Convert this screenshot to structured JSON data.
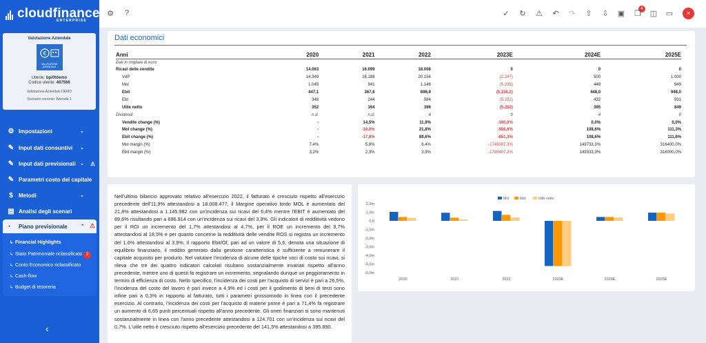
{
  "app": {
    "logo": "cloudfinance",
    "logo_sub": "ENTERPRISE"
  },
  "company": {
    "title": "Valutazione Aziendale",
    "logo_text": "VALUTAZIONE AZIENDALE",
    "user_label": "Utente:",
    "user": "bpi0tdemo",
    "code_label": "Codice utente:",
    "code": "487566",
    "project": "Valutazione Aziendale DEMO",
    "scenario": "Scenario corrente: Azienda 1"
  },
  "nav": {
    "impostazioni": "Impostazioni",
    "consuntivi": "Input dati consuntivi",
    "previsionali": "Input dati previsionali",
    "parametri": "Parametri costo del capitale",
    "metodi": "Metodi",
    "scenari": "Analisi degli scenari",
    "piano": "Piano previsionale",
    "sub": [
      "Financial Highlights",
      "Stato Patrimoniale riclassificato",
      "Conto Economico riclassificato",
      "Cash-flow",
      "Budget di tesoreria"
    ],
    "sub_badge": "2",
    "collapse": "‹"
  },
  "topbar": {
    "notifications": "4",
    "close": "×"
  },
  "icons": {
    "home": "gear-icon",
    "help": "question-icon",
    "check": "check-icon",
    "refresh": "refresh-icon",
    "alert": "alert-icon",
    "undo": "undo-icon",
    "redo": "redo-icon",
    "upload": "upload-icon",
    "download": "download-icon",
    "save": "save-icon",
    "copy": "copy-icon",
    "columns": "columns-icon",
    "panel": "panel-icon",
    "close": "close-icon"
  },
  "econ": {
    "title": "Dati economici",
    "header": [
      "Anni",
      "2020",
      "2021",
      "2022",
      "2023E",
      "2024E",
      "2025E"
    ],
    "rows": [
      {
        "cells": [
          "Dati in migliaia di euro",
          "",
          "",
          "",
          "",
          "",
          ""
        ],
        "style": "i",
        "neg": [
          false,
          false,
          false,
          false,
          false,
          false,
          false
        ]
      },
      {
        "cells": [
          "Ricavi delle vendite",
          "14.063",
          "16.099",
          "18.008",
          "0",
          "0",
          "0"
        ],
        "style": "b",
        "neg": [
          false,
          false,
          false,
          false,
          false,
          false,
          false
        ]
      },
      {
        "cells": [
          "VdP",
          "14.349",
          "16.188",
          "20.154",
          "(2.247)",
          "500",
          "1.000"
        ],
        "style": "in",
        "neg": [
          false,
          false,
          false,
          false,
          true,
          false,
          false
        ]
      },
      {
        "cells": [
          "Mol",
          "1.045",
          "941",
          "1.146",
          "(5.235)",
          "449",
          "949"
        ],
        "style": "in",
        "neg": [
          false,
          false,
          false,
          false,
          true,
          false,
          false
        ]
      },
      {
        "cells": [
          "Ebit",
          "447,1",
          "367,6",
          "696,9",
          "(5.236,2)",
          "448,0",
          "948,0"
        ],
        "style": "b in",
        "neg": [
          false,
          false,
          false,
          false,
          true,
          false,
          false
        ]
      },
      {
        "cells": [
          "Ebt",
          "348",
          "244",
          "584",
          "(5.252)",
          "432",
          "931"
        ],
        "style": "in",
        "neg": [
          false,
          false,
          false,
          false,
          true,
          false,
          false
        ]
      },
      {
        "cells": [
          "Utile netto",
          "352",
          "164",
          "396",
          "(5.252)",
          "395",
          "849"
        ],
        "style": "b in",
        "neg": [
          false,
          false,
          false,
          false,
          true,
          false,
          false
        ]
      },
      {
        "cells": [
          "Dividendi",
          "n.d.",
          "n.d.",
          "4",
          "0",
          "4",
          "0"
        ],
        "style": "i",
        "neg": [
          false,
          false,
          false,
          false,
          false,
          false,
          false
        ]
      },
      {
        "cells": [
          "Vendite change (%)",
          "-",
          "14,5%",
          "11,9%",
          "-100,0%",
          "0,0%",
          "0,0%"
        ],
        "style": "b in",
        "neg": [
          false,
          false,
          false,
          false,
          true,
          false,
          false
        ]
      },
      {
        "cells": [
          "Mol change (%)",
          "-",
          "-10,0%",
          "21,8%",
          "-556,8%",
          "108,6%",
          "111,3%"
        ],
        "style": "b in",
        "neg": [
          false,
          false,
          true,
          false,
          true,
          false,
          false
        ]
      },
      {
        "cells": [
          "Ebit change (%)",
          "-",
          "-17,8%",
          "89,6%",
          "-851,3%",
          "108,6%",
          "111,6%"
        ],
        "style": "b in",
        "neg": [
          false,
          false,
          true,
          false,
          true,
          false,
          false
        ]
      },
      {
        "cells": [
          "Mol margin (%)",
          "7,4%",
          "5,8%",
          "6,4%",
          "-1745007,3%",
          "149733,3%",
          "316400,0%"
        ],
        "style": "in",
        "neg": [
          false,
          false,
          false,
          false,
          true,
          false,
          false
        ]
      },
      {
        "cells": [
          "Ebit margin (%)",
          "3,2%",
          "2,3%",
          "3,9%",
          "-1745407,3%",
          "149333,3%",
          "316000,0%"
        ],
        "style": "in",
        "neg": [
          false,
          false,
          false,
          false,
          true,
          false,
          false
        ]
      }
    ]
  },
  "analysis": "Nell'ultimo bilancio approvato relativo all'esercizio 2022, il fatturato è cresciuto rispetto all'esercizio precedente dell'11,9% attestandosi a 18.008.477, il Margine operativo lordo MOL è aumentato del 21,8% attestandosi a 1.145.982 con un'incidenza sui ricavi del 6,4% mentre l'EBIT è aumentato del 89,6% risultando pari a 696.914 con un'incidenza sui ricavi del 3,9%. Gli indicatori di redditività vedono per il ROI un incremento del 1,7% attestandosi al 4,7%, per il ROE un incremento del 9,7% attestandosi al 18,5% e per quanto concerne la redditività delle vendite ROS si registra un incremento del 1,6% attestandosi al 3,9%. Il rapporto Ebit/Of, pari ad un valore di 5,6, denota una situazione di equilibrio finanziario, il reddito generato dalla gestione caratteristica è sufficiente a remunerare il capitale acquisito per produrlo. Nel valutare l'incidenza di alcune delle tipiche voci di costo sui ricavi, si rileva che tre dei quattro indicatori calcolati risultano sostanzialmente invariati rispetto all'anno precedente, mentre uno di questi fa registrare un incremento, segnalando dunque un peggioramento in termini di efficienza di costo. Nello specifico, l'incidenza dei costi per l'acquisto di servizi è pari a 26,5%, l'incidenza del costo del lavoro è pari invece a 4,9% ed i costi per il godimento di beni di terzi sono infine pari a 0,3% in rapporto al fatturato, tutti i parametri grossomodo in linea con il precedente esercizio. Al contrario, l'incidenza dei costi per l'acquisto di materie prime è pari a 71,4% fa registrare un aumento di 6,65 punti percentuali rispetto all'anno precedente. Gli oneri finanziari si sono mantenuti sostanzialmente in linea con l'anno precedente attestandosi a 124.701 con un'incidenza sui ricavi del 0,7%. L'utile netto è cresciuto rispetto all'esercizio precedente del 141,5% attestandosi a 395.890.",
  "chart_data": {
    "type": "bar",
    "categories": [
      "2020",
      "2021",
      "2022",
      "2023E",
      "2024E",
      "2025E"
    ],
    "series": [
      {
        "name": "Mol",
        "color": "#1565c0",
        "values": [
          1.045,
          0.941,
          1.146,
          -5.235,
          0.449,
          0.949
        ]
      },
      {
        "name": "Ebit",
        "color": "#ff9800",
        "values": [
          0.447,
          0.368,
          0.697,
          -5.236,
          0.448,
          0.948
        ]
      },
      {
        "name": "Utile netto",
        "color": "#ffcc80",
        "values": [
          0.352,
          0.164,
          0.396,
          -5.252,
          0.395,
          0.849
        ]
      }
    ],
    "yticks": [
      "2,0m",
      "1,0m",
      "0,0",
      "-1,0m",
      "-2,0m",
      "-3,0m",
      "-4,0m",
      "-5,0m",
      "-6,0m"
    ],
    "ylim": [
      -6,
      2
    ],
    "legend": "top-center",
    "grid": false
  }
}
